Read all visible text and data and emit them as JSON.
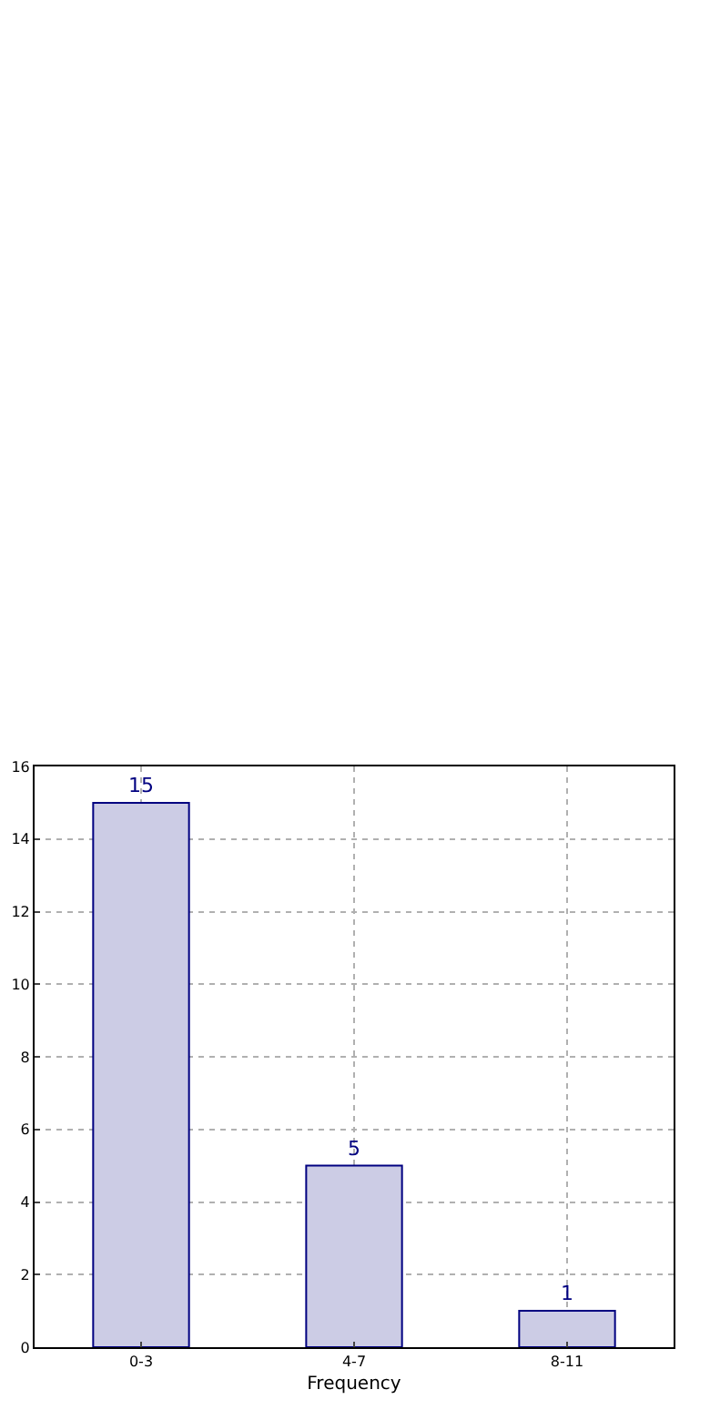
{
  "chart_data": {
    "type": "bar",
    "categories": [
      "0-3",
      "4-7",
      "8-11"
    ],
    "values": [
      15,
      5,
      1
    ],
    "color": "#cccce5",
    "xlabel": "Frequency",
    "ylim": [
      0,
      16
    ],
    "yticks": [
      0,
      2,
      4,
      6,
      8,
      10,
      12,
      14,
      16
    ],
    "grid": true,
    "data_labels": true
  }
}
